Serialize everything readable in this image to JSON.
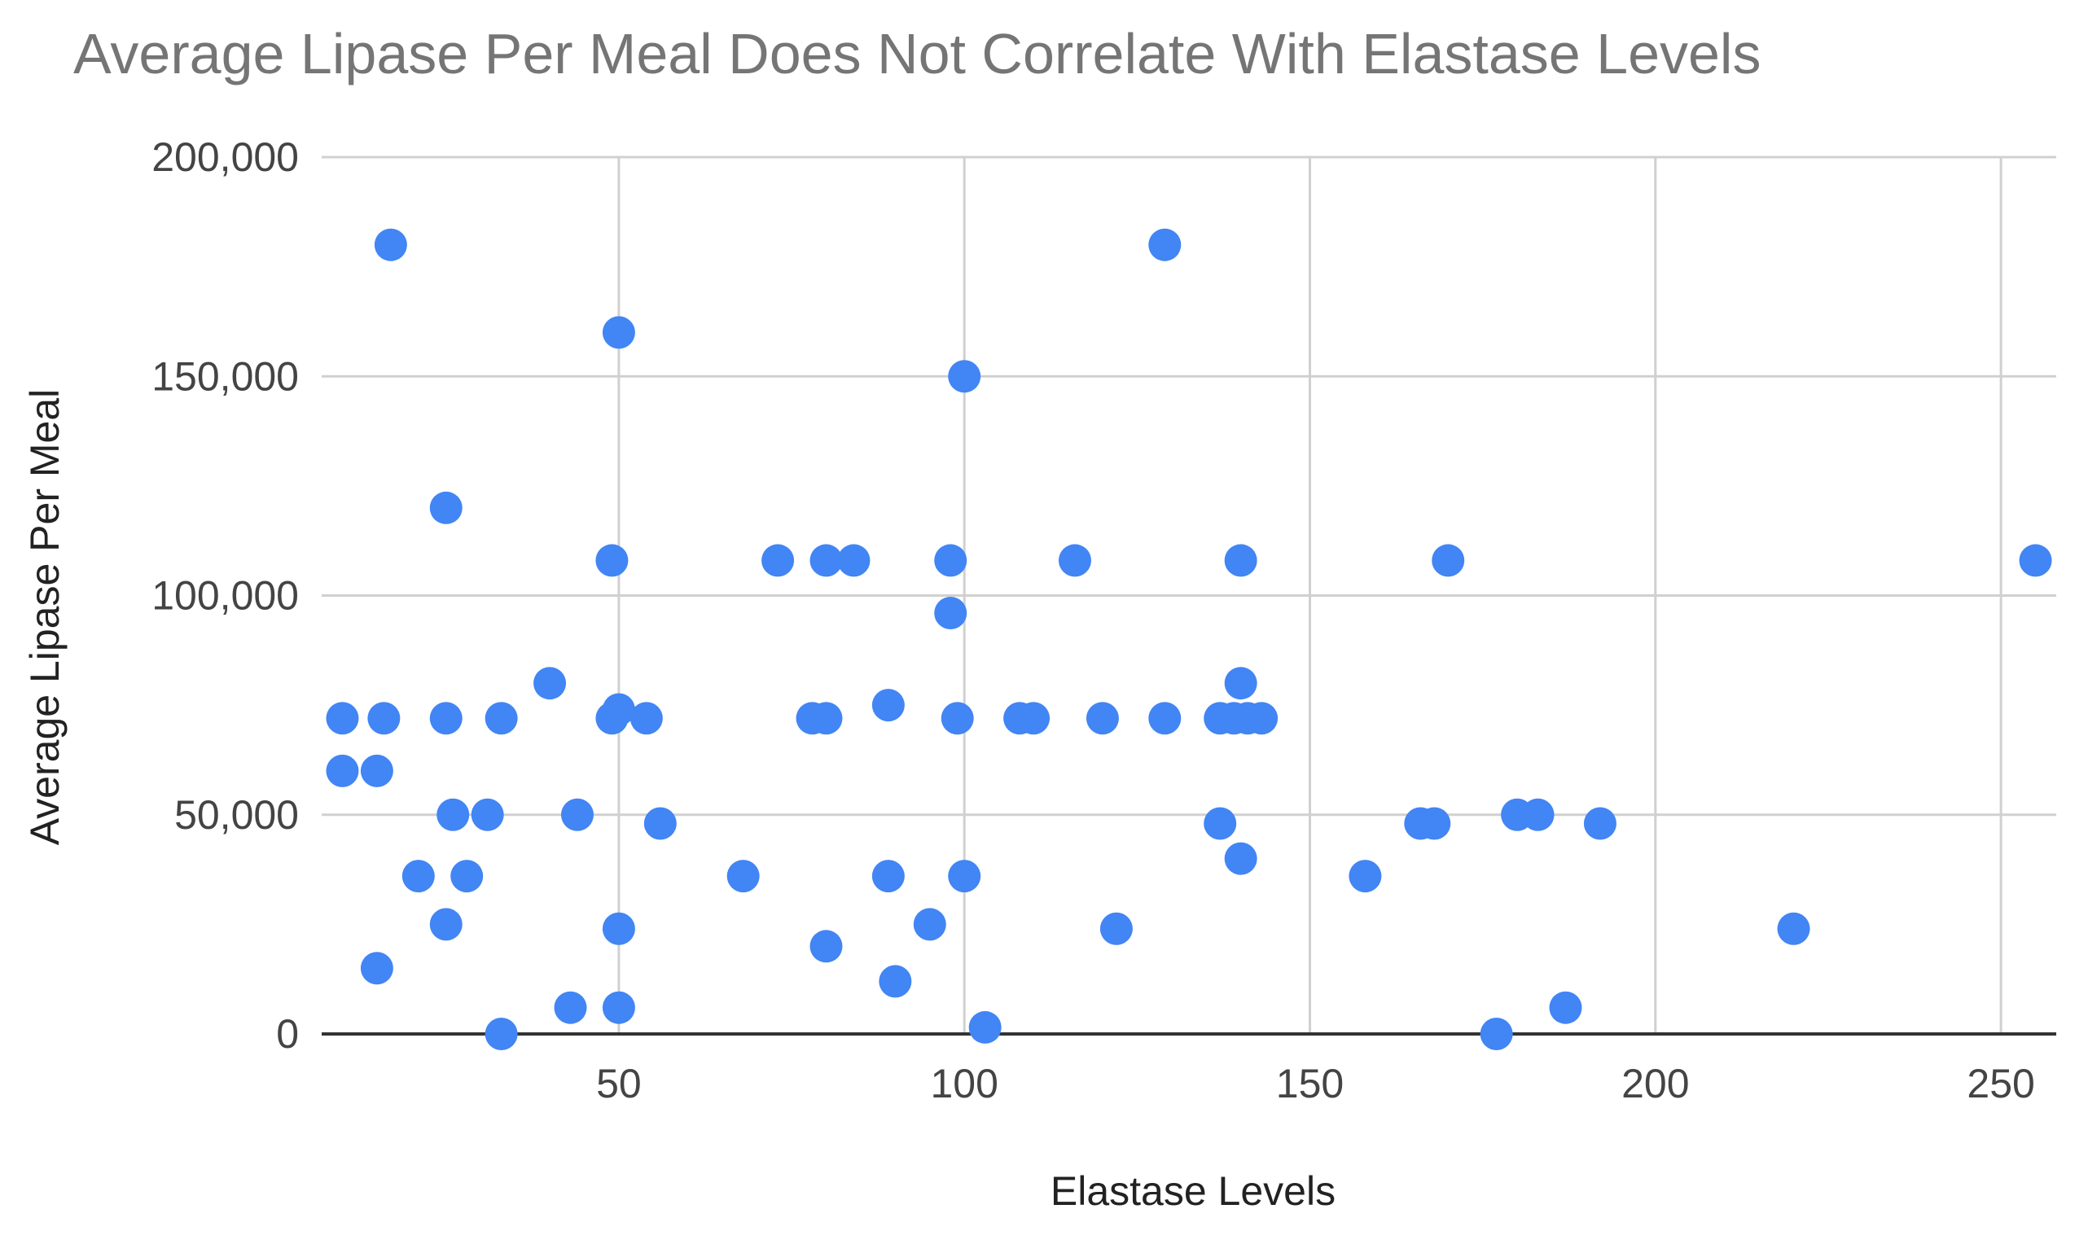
{
  "chart_data": {
    "type": "scatter",
    "title": "Average Lipase Per Meal Does Not Correlate With Elastase Levels",
    "xlabel": "Elastase Levels",
    "ylabel": "Average Lipase Per Meal",
    "xlim": [
      7,
      258
    ],
    "ylim": [
      0,
      200000
    ],
    "xticks": [
      50,
      100,
      150,
      200,
      250
    ],
    "xtick_labels": [
      "50",
      "100",
      "150",
      "200",
      "250"
    ],
    "yticks": [
      0,
      50000,
      100000,
      150000,
      200000
    ],
    "ytick_labels": [
      "0",
      "50,000",
      "100,000",
      "150,000",
      "200,000"
    ],
    "grid": true,
    "legend": "none",
    "series": [
      {
        "name": "Average Lipase Per Meal",
        "color": "#4285F4",
        "points": [
          [
            17,
            180000
          ],
          [
            129,
            180000
          ],
          [
            50,
            160000
          ],
          [
            100,
            150000
          ],
          [
            25,
            120000
          ],
          [
            49,
            108000
          ],
          [
            73,
            108000
          ],
          [
            80,
            108000
          ],
          [
            84,
            108000
          ],
          [
            98,
            108000
          ],
          [
            116,
            108000
          ],
          [
            140,
            108000
          ],
          [
            170,
            108000
          ],
          [
            255,
            108000
          ],
          [
            98,
            96000
          ],
          [
            40,
            80000
          ],
          [
            140,
            80000
          ],
          [
            50,
            74000
          ],
          [
            89,
            75000
          ],
          [
            10,
            72000
          ],
          [
            16,
            72000
          ],
          [
            25,
            72000
          ],
          [
            33,
            72000
          ],
          [
            49,
            72000
          ],
          [
            54,
            72000
          ],
          [
            78,
            72000
          ],
          [
            80,
            72000
          ],
          [
            99,
            72000
          ],
          [
            108,
            72000
          ],
          [
            110,
            72000
          ],
          [
            120,
            72000
          ],
          [
            129,
            72000
          ],
          [
            137,
            72000
          ],
          [
            139,
            72000
          ],
          [
            141,
            72000
          ],
          [
            143,
            72000
          ],
          [
            10,
            60000
          ],
          [
            15,
            60000
          ],
          [
            26,
            50000
          ],
          [
            31,
            50000
          ],
          [
            44,
            50000
          ],
          [
            180,
            50000
          ],
          [
            183,
            50000
          ],
          [
            56,
            48000
          ],
          [
            137,
            48000
          ],
          [
            166,
            48000
          ],
          [
            168,
            48000
          ],
          [
            192,
            48000
          ],
          [
            140,
            40000
          ],
          [
            21,
            36000
          ],
          [
            28,
            36000
          ],
          [
            68,
            36000
          ],
          [
            89,
            36000
          ],
          [
            100,
            36000
          ],
          [
            158,
            36000
          ],
          [
            25,
            25000
          ],
          [
            95,
            25000
          ],
          [
            50,
            24000
          ],
          [
            122,
            24000
          ],
          [
            220,
            24000
          ],
          [
            80,
            20000
          ],
          [
            15,
            15000
          ],
          [
            90,
            12000
          ],
          [
            43,
            6000
          ],
          [
            50,
            6000
          ],
          [
            187,
            6000
          ],
          [
            103,
            1500
          ],
          [
            33,
            0
          ],
          [
            177,
            0
          ]
        ]
      }
    ]
  }
}
